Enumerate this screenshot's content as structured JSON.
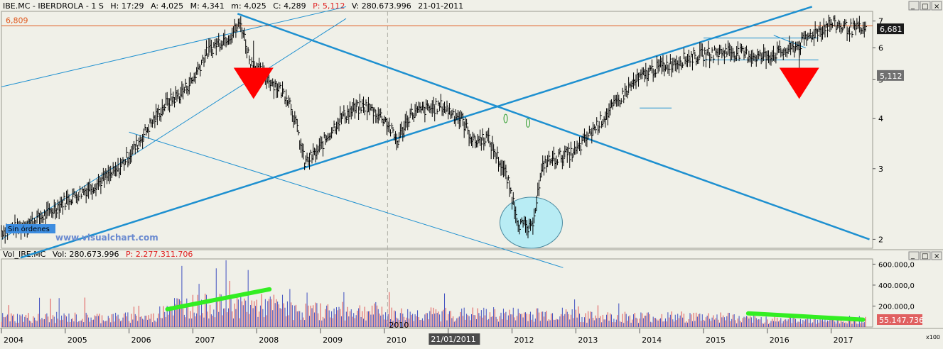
{
  "window": {
    "buttons": [
      "_",
      "□",
      "×"
    ]
  },
  "price_header": {
    "symbol": "IBE.MC - IBERDROLA - 1 S",
    "h": "H: 17:29",
    "a": "A: 4,025",
    "m": "M: 4,341",
    "min": "m: 4,025",
    "c": "C: 4,289",
    "p": "P: 5,112",
    "v": "V: 280.673.996",
    "date": "21-01-2011"
  },
  "volume_header": {
    "name": "Vol_IBE.MC",
    "vol": "Vol: 280.673.996",
    "p": "P: 2.277.311.706"
  },
  "labels": {
    "sin_ordenes": "Sin órdenes",
    "watermark": "www.visualchart.com",
    "cursor_date_top": "2010",
    "cursor_date_badge": "21/01/2011",
    "volume_unit": "x100"
  },
  "colors": {
    "background": "#f0f0e8",
    "trendline": "#1e90d0",
    "resistance": "#e05a20",
    "arrow": "#ff0000",
    "volume_trend": "#33ee22",
    "volume_bar_red": "#e05050",
    "volume_bar_blue": "#4050c0",
    "circle_fill": "#b8ecf4",
    "badge_dark": "#1a1a1a",
    "badge_gray": "#707070",
    "badge_volume": "#e06060"
  },
  "chart_data": [
    {
      "type": "line",
      "id": "price",
      "scale": "log",
      "x_unit": "year",
      "ylim": [
        1.9,
        7.4
      ],
      "y_ticks": [
        "2",
        "3",
        "4",
        "5",
        "6",
        "7"
      ],
      "x_ticks": [
        "2004",
        "2005",
        "2006",
        "2007",
        "2008",
        "2009",
        "2010",
        "2011",
        "2012",
        "2013",
        "2014",
        "2015",
        "2016",
        "2017"
      ],
      "resistance": {
        "label": "6,809",
        "value": 6.809
      },
      "last_price_label": "6,681",
      "last_price": 6.681,
      "cursor_price_label": "5,112",
      "cursor_price": 5.112,
      "series": [
        {
          "x": [
            2004.0,
            2004.3,
            2004.7,
            2005.0,
            2005.4,
            2005.8,
            2006.1,
            2006.4,
            2006.6,
            2006.8,
            2007.0,
            2007.2,
            2007.4,
            2007.6,
            2007.75,
            2007.9,
            2008.2,
            2008.5,
            2008.75,
            2008.95,
            2009.1,
            2009.3,
            2009.5,
            2009.7,
            2010.0,
            2010.2,
            2010.4,
            2010.6,
            2010.9,
            2011.2,
            2011.4,
            2011.6,
            2011.9,
            2012.1,
            2012.3,
            2012.5,
            2012.7,
            2013.0,
            2013.3,
            2013.6,
            2013.9,
            2014.2,
            2014.5,
            2014.8,
            2015.1,
            2015.4,
            2015.6,
            2015.9,
            2016.1,
            2016.3,
            2016.5,
            2016.7,
            2017.0,
            2017.3,
            2017.45,
            2017.55
          ],
          "values": [
            2.1,
            2.15,
            2.3,
            2.5,
            2.7,
            2.95,
            3.4,
            4.0,
            4.4,
            4.6,
            5.0,
            5.8,
            6.2,
            6.5,
            6.9,
            5.5,
            5.0,
            4.5,
            3.1,
            3.3,
            3.6,
            4.0,
            4.2,
            4.3,
            4.0,
            3.5,
            4.1,
            4.2,
            4.3,
            4.0,
            3.5,
            3.6,
            2.9,
            2.2,
            2.1,
            3.1,
            3.2,
            3.3,
            3.8,
            4.3,
            4.9,
            5.3,
            5.5,
            5.7,
            5.8,
            5.9,
            5.8,
            5.7,
            5.8,
            5.9,
            6.1,
            6.5,
            6.9,
            6.7,
            6.68,
            6.6
          ]
        }
      ],
      "annotations": {
        "trendlines": [
          {
            "x": [
              2004.0,
              2009.4
            ],
            "values": [
              4.8,
              7.6
            ]
          },
          {
            "x": [
              2004.0,
              2009.4
            ],
            "values": [
              2.0,
              7.1
            ]
          },
          {
            "x": [
              2004.3,
              2016.7
            ],
            "values": [
              1.8,
              7.6
            ]
          },
          {
            "x": [
              2007.7,
              2017.6
            ],
            "values": [
              7.3,
              2.0
            ]
          },
          {
            "x": [
              2006.0,
              2012.8
            ],
            "values": [
              3.7,
              1.7
            ]
          },
          {
            "x": [
              2015.0,
              2016.8
            ],
            "values": [
              6.35,
              6.35
            ]
          },
          {
            "x": [
              2015.0,
              2016.8
            ],
            "values": [
              5.6,
              5.6
            ]
          },
          {
            "x": [
              2014.0,
              2014.5
            ],
            "values": [
              4.25,
              4.25
            ]
          },
          {
            "x": [
              2016.1,
              2016.6
            ],
            "values": [
              6.45,
              6.0
            ]
          }
        ],
        "arrows": [
          {
            "x": 2007.95,
            "value": 5.1
          },
          {
            "x": 2016.5,
            "value": 5.1
          }
        ],
        "ovals": [
          {
            "x": 2011.9,
            "value": 4.0
          },
          {
            "x": 2012.25,
            "value": 3.9
          }
        ],
        "circle": {
          "x": 2012.3,
          "value": 2.2
        }
      }
    },
    {
      "type": "bar",
      "id": "volume",
      "ylim": [
        0,
        650000
      ],
      "y_ticks": [
        "200.000,0",
        "400.000,0",
        "600.000,0"
      ],
      "last_volume_label": "55.147.736",
      "series": [
        {
          "name": "Vol_IBE.MC"
        }
      ],
      "annotations": {
        "trendlines": [
          {
            "x": [
              2006.6,
              2008.2
            ],
            "values": [
              170000,
              360000
            ]
          },
          {
            "x": [
              2015.7,
              2017.5
            ],
            "values": [
              130000,
              70000
            ]
          }
        ]
      }
    }
  ]
}
